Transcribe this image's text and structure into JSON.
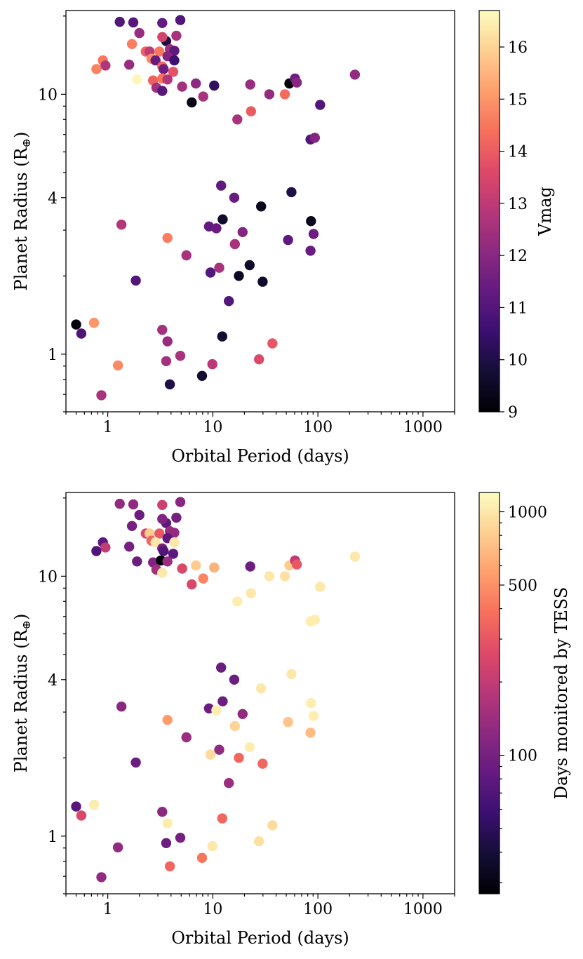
{
  "chart_data": [
    {
      "type": "scatter",
      "xscale": "log",
      "yscale": "log",
      "xlabel": "Orbital Period (days)",
      "ylabel_main": "Planet Radius (R",
      "ylabel_sub": "⊕",
      "ylabel_close": ")",
      "xlim": [
        0.4,
        2000
      ],
      "ylim": [
        0.6,
        21
      ],
      "x_tick_labels": [
        "1",
        "10",
        "100",
        "1000"
      ],
      "y_tick_labels": [
        "1",
        "4",
        "10"
      ],
      "colorbar": {
        "label": "Vmag",
        "scale": "linear",
        "range": [
          9,
          16.7
        ],
        "ticks": [
          "9",
          "10",
          "11",
          "12",
          "13",
          "14",
          "15",
          "16"
        ]
      },
      "points": [
        {
          "period": 1.3,
          "radius": 19.0,
          "c": 11.0
        },
        {
          "period": 1.75,
          "radius": 18.9,
          "c": 11.1
        },
        {
          "period": 3.3,
          "radius": 18.8,
          "c": 11.3
        },
        {
          "period": 4.9,
          "radius": 19.3,
          "c": 11.0
        },
        {
          "period": 2.0,
          "radius": 17.2,
          "c": 12.3
        },
        {
          "period": 3.6,
          "radius": 16.0,
          "c": 10.0
        },
        {
          "period": 4.5,
          "radius": 16.8,
          "c": 12.6
        },
        {
          "period": 3.3,
          "radius": 16.6,
          "c": 13.4
        },
        {
          "period": 1.7,
          "radius": 15.6,
          "c": 14.6
        },
        {
          "period": 2.3,
          "radius": 14.6,
          "c": 14.1
        },
        {
          "period": 2.5,
          "radius": 14.6,
          "c": 13.0
        },
        {
          "period": 3.1,
          "radius": 14.6,
          "c": 14.5
        },
        {
          "period": 3.9,
          "radius": 14.9,
          "c": 12.4
        },
        {
          "period": 4.3,
          "radius": 14.7,
          "c": 11.2
        },
        {
          "period": 3.7,
          "radius": 14.0,
          "c": 11.9
        },
        {
          "period": 2.6,
          "radius": 13.7,
          "c": 14.8
        },
        {
          "period": 2.85,
          "radius": 13.5,
          "c": 11.4
        },
        {
          "period": 4.3,
          "radius": 13.5,
          "c": 10.6
        },
        {
          "period": 0.9,
          "radius": 13.5,
          "c": 14.5
        },
        {
          "period": 3.3,
          "radius": 12.8,
          "c": 14.2
        },
        {
          "period": 1.6,
          "radius": 13.0,
          "c": 12.3
        },
        {
          "period": 0.95,
          "radius": 12.9,
          "c": 12.8
        },
        {
          "period": 0.78,
          "radius": 12.5,
          "c": 14.7
        },
        {
          "period": 3.4,
          "radius": 12.5,
          "c": 11.5
        },
        {
          "period": 4.2,
          "radius": 12.2,
          "c": 13.8
        },
        {
          "period": 1.9,
          "radius": 11.4,
          "c": 16.6
        },
        {
          "period": 2.7,
          "radius": 11.3,
          "c": 14.1
        },
        {
          "period": 3.3,
          "radius": 11.5,
          "c": 14.4
        },
        {
          "period": 3.7,
          "radius": 11.4,
          "c": 12.8
        },
        {
          "period": 2.9,
          "radius": 10.6,
          "c": 12.5
        },
        {
          "period": 3.3,
          "radius": 10.3,
          "c": 11.1
        },
        {
          "period": 5.1,
          "radius": 10.7,
          "c": 12.5
        },
        {
          "period": 6.9,
          "radius": 11.0,
          "c": 12.1
        },
        {
          "period": 10.3,
          "radius": 10.8,
          "c": 10.3
        },
        {
          "period": 22.7,
          "radius": 10.9,
          "c": 12.3
        },
        {
          "period": 53.5,
          "radius": 11.0,
          "c": 9.1
        },
        {
          "period": 60.5,
          "radius": 11.5,
          "c": 11.5
        },
        {
          "period": 63.0,
          "radius": 11.1,
          "c": 12.0
        },
        {
          "period": 225,
          "radius": 11.9,
          "c": 12.2
        },
        {
          "period": 6.3,
          "radius": 9.3,
          "c": 9.3
        },
        {
          "period": 8.1,
          "radius": 9.8,
          "c": 12.6
        },
        {
          "period": 34.5,
          "radius": 10.0,
          "c": 12.2
        },
        {
          "period": 48.5,
          "radius": 10.0,
          "c": 14.3
        },
        {
          "period": 23.1,
          "radius": 8.6,
          "c": 14.0
        },
        {
          "period": 17.1,
          "radius": 8.0,
          "c": 12.6
        },
        {
          "period": 105,
          "radius": 9.1,
          "c": 11.0
        },
        {
          "period": 85.0,
          "radius": 6.7,
          "c": 11.0
        },
        {
          "period": 93.5,
          "radius": 6.8,
          "c": 11.9
        },
        {
          "period": 12.0,
          "radius": 4.45,
          "c": 11.3
        },
        {
          "period": 56.0,
          "radius": 4.2,
          "c": 10.0
        },
        {
          "period": 16.0,
          "radius": 4.0,
          "c": 11.4
        },
        {
          "period": 28.8,
          "radius": 3.7,
          "c": 9.4
        },
        {
          "period": 12.4,
          "radius": 3.3,
          "c": 9.6
        },
        {
          "period": 86.0,
          "radius": 3.25,
          "c": 9.4
        },
        {
          "period": 9.2,
          "radius": 3.1,
          "c": 11.3
        },
        {
          "period": 10.8,
          "radius": 3.05,
          "c": 11.4
        },
        {
          "period": 19.2,
          "radius": 2.95,
          "c": 11.9
        },
        {
          "period": 91.0,
          "radius": 2.9,
          "c": 11.5
        },
        {
          "period": 1.35,
          "radius": 3.15,
          "c": 12.8
        },
        {
          "period": 3.7,
          "radius": 2.8,
          "c": 14.6
        },
        {
          "period": 52.0,
          "radius": 2.75,
          "c": 11.2
        },
        {
          "period": 16.2,
          "radius": 2.65,
          "c": 12.6
        },
        {
          "period": 85.0,
          "radius": 2.5,
          "c": 11.4
        },
        {
          "period": 5.6,
          "radius": 2.4,
          "c": 12.6
        },
        {
          "period": 22.4,
          "radius": 2.2,
          "c": 9.6
        },
        {
          "period": 11.5,
          "radius": 2.15,
          "c": 12.6
        },
        {
          "period": 9.5,
          "radius": 2.06,
          "c": 11.0
        },
        {
          "period": 17.7,
          "radius": 2.0,
          "c": 9.5
        },
        {
          "period": 1.85,
          "radius": 1.92,
          "c": 11.0
        },
        {
          "period": 29.8,
          "radius": 1.9,
          "c": 9.6
        },
        {
          "period": 14.2,
          "radius": 1.6,
          "c": 11.0
        },
        {
          "period": 0.5,
          "radius": 1.3,
          "c": 9.1
        },
        {
          "period": 0.74,
          "radius": 1.32,
          "c": 15.0
        },
        {
          "period": 0.56,
          "radius": 1.2,
          "c": 10.9
        },
        {
          "period": 3.3,
          "radius": 1.24,
          "c": 12.5
        },
        {
          "period": 12.3,
          "radius": 1.17,
          "c": 9.7
        },
        {
          "period": 3.7,
          "radius": 1.12,
          "c": 12.3
        },
        {
          "period": 36.9,
          "radius": 1.1,
          "c": 13.9
        },
        {
          "period": 4.9,
          "radius": 0.985,
          "c": 12.6
        },
        {
          "period": 3.6,
          "radius": 0.94,
          "c": 12.5
        },
        {
          "period": 27.5,
          "radius": 0.955,
          "c": 13.6
        },
        {
          "period": 1.25,
          "radius": 0.905,
          "c": 14.8
        },
        {
          "period": 9.9,
          "radius": 0.915,
          "c": 12.9
        },
        {
          "period": 7.9,
          "radius": 0.825,
          "c": 9.7
        },
        {
          "period": 3.9,
          "radius": 0.765,
          "c": 10.0
        },
        {
          "period": 0.87,
          "radius": 0.695,
          "c": 12.6
        }
      ]
    },
    {
      "type": "scatter",
      "xscale": "log",
      "yscale": "log",
      "xlabel": "Orbital Period (days)",
      "ylabel_main": "Planet Radius (R",
      "ylabel_sub": "⊕",
      "ylabel_close": ")",
      "xlim": [
        0.4,
        2000
      ],
      "ylim": [
        0.6,
        21
      ],
      "x_tick_labels": [
        "1",
        "10",
        "100",
        "1000"
      ],
      "y_tick_labels": [
        "1",
        "4",
        "10"
      ],
      "colorbar": {
        "label": "Days monitored by TESS",
        "scale": "log",
        "range": [
          27,
          1200
        ],
        "ticks": [
          "100",
          "500",
          "1000"
        ]
      },
      "points": [
        {
          "period": 1.3,
          "radius": 19.0,
          "c": 130
        },
        {
          "period": 1.75,
          "radius": 18.9,
          "c": 130
        },
        {
          "period": 3.3,
          "radius": 18.8,
          "c": 220
        },
        {
          "period": 4.9,
          "radius": 19.3,
          "c": 120
        },
        {
          "period": 2.0,
          "radius": 17.2,
          "c": 90
        },
        {
          "period": 3.6,
          "radius": 16.0,
          "c": 80
        },
        {
          "period": 4.5,
          "radius": 16.8,
          "c": 100
        },
        {
          "period": 3.3,
          "radius": 16.6,
          "c": 110
        },
        {
          "period": 1.7,
          "radius": 15.6,
          "c": 100
        },
        {
          "period": 2.3,
          "radius": 14.6,
          "c": 250
        },
        {
          "period": 2.5,
          "radius": 14.6,
          "c": 800
        },
        {
          "period": 3.1,
          "radius": 14.6,
          "c": 300
        },
        {
          "period": 3.9,
          "radius": 14.9,
          "c": 140
        },
        {
          "period": 4.3,
          "radius": 14.7,
          "c": 130
        },
        {
          "period": 3.7,
          "radius": 14.0,
          "c": 80
        },
        {
          "period": 2.6,
          "radius": 13.7,
          "c": 350
        },
        {
          "period": 2.85,
          "radius": 13.5,
          "c": 1000
        },
        {
          "period": 4.3,
          "radius": 13.5,
          "c": 1000
        },
        {
          "period": 0.9,
          "radius": 13.5,
          "c": 80
        },
        {
          "period": 3.3,
          "radius": 12.8,
          "c": 100
        },
        {
          "period": 1.6,
          "radius": 13.0,
          "c": 100
        },
        {
          "period": 0.95,
          "radius": 12.9,
          "c": 200
        },
        {
          "period": 0.78,
          "radius": 12.5,
          "c": 70
        },
        {
          "period": 3.4,
          "radius": 12.5,
          "c": 70
        },
        {
          "period": 4.2,
          "radius": 12.2,
          "c": 80
        },
        {
          "period": 1.9,
          "radius": 11.4,
          "c": 90
        },
        {
          "period": 2.7,
          "radius": 11.3,
          "c": 110
        },
        {
          "period": 3.2,
          "radius": 11.5,
          "c": 28
        },
        {
          "period": 3.7,
          "radius": 11.4,
          "c": 140
        },
        {
          "period": 2.9,
          "radius": 10.6,
          "c": 150
        },
        {
          "period": 3.3,
          "radius": 10.3,
          "c": 1000
        },
        {
          "period": 5.1,
          "radius": 10.7,
          "c": 250
        },
        {
          "period": 6.9,
          "radius": 11.0,
          "c": 800
        },
        {
          "period": 10.3,
          "radius": 10.8,
          "c": 650
        },
        {
          "period": 22.7,
          "radius": 10.9,
          "c": 90
        },
        {
          "period": 53.5,
          "radius": 11.0,
          "c": 800
        },
        {
          "period": 60.5,
          "radius": 11.5,
          "c": 200
        },
        {
          "period": 63.0,
          "radius": 11.1,
          "c": 300
        },
        {
          "period": 225,
          "radius": 11.9,
          "c": 1000
        },
        {
          "period": 6.3,
          "radius": 9.3,
          "c": 250
        },
        {
          "period": 8.1,
          "radius": 9.8,
          "c": 450
        },
        {
          "period": 34.5,
          "radius": 10.0,
          "c": 1000
        },
        {
          "period": 48.5,
          "radius": 10.0,
          "c": 950
        },
        {
          "period": 23.1,
          "radius": 8.6,
          "c": 1000
        },
        {
          "period": 17.1,
          "radius": 8.0,
          "c": 1050
        },
        {
          "period": 105,
          "radius": 9.1,
          "c": 1000
        },
        {
          "period": 85.0,
          "radius": 6.7,
          "c": 1050
        },
        {
          "period": 93.5,
          "radius": 6.8,
          "c": 1050
        },
        {
          "period": 12.0,
          "radius": 4.45,
          "c": 90
        },
        {
          "period": 56.0,
          "radius": 4.2,
          "c": 1000
        },
        {
          "period": 16.0,
          "radius": 4.0,
          "c": 90
        },
        {
          "period": 28.8,
          "radius": 3.7,
          "c": 1000
        },
        {
          "period": 12.4,
          "radius": 3.3,
          "c": 90
        },
        {
          "period": 86.0,
          "radius": 3.25,
          "c": 1050
        },
        {
          "period": 9.2,
          "radius": 3.1,
          "c": 90
        },
        {
          "period": 10.8,
          "radius": 3.05,
          "c": 1050
        },
        {
          "period": 19.2,
          "radius": 2.95,
          "c": 130
        },
        {
          "period": 91.0,
          "radius": 2.9,
          "c": 1050
        },
        {
          "period": 1.35,
          "radius": 3.15,
          "c": 120
        },
        {
          "period": 3.7,
          "radius": 2.8,
          "c": 550
        },
        {
          "period": 52.0,
          "radius": 2.75,
          "c": 750
        },
        {
          "period": 16.2,
          "radius": 2.65,
          "c": 850
        },
        {
          "period": 85.0,
          "radius": 2.5,
          "c": 700
        },
        {
          "period": 5.6,
          "radius": 2.4,
          "c": 140
        },
        {
          "period": 22.4,
          "radius": 2.2,
          "c": 1050
        },
        {
          "period": 11.5,
          "radius": 2.15,
          "c": 130
        },
        {
          "period": 9.5,
          "radius": 2.06,
          "c": 900
        },
        {
          "period": 17.7,
          "radius": 2.0,
          "c": 350
        },
        {
          "period": 1.85,
          "radius": 1.92,
          "c": 90
        },
        {
          "period": 29.8,
          "radius": 1.9,
          "c": 350
        },
        {
          "period": 14.2,
          "radius": 1.6,
          "c": 140
        },
        {
          "period": 0.5,
          "radius": 1.3,
          "c": 75
        },
        {
          "period": 0.74,
          "radius": 1.32,
          "c": 1050
        },
        {
          "period": 0.56,
          "radius": 1.2,
          "c": 250
        },
        {
          "period": 3.3,
          "radius": 1.24,
          "c": 120
        },
        {
          "period": 12.3,
          "radius": 1.17,
          "c": 350
        },
        {
          "period": 3.7,
          "radius": 1.12,
          "c": 1050
        },
        {
          "period": 36.9,
          "radius": 1.1,
          "c": 900
        },
        {
          "period": 4.9,
          "radius": 0.985,
          "c": 100
        },
        {
          "period": 3.6,
          "radius": 0.94,
          "c": 90
        },
        {
          "period": 27.5,
          "radius": 0.955,
          "c": 950
        },
        {
          "period": 1.25,
          "radius": 0.905,
          "c": 130
        },
        {
          "period": 9.9,
          "radius": 0.915,
          "c": 1000
        },
        {
          "period": 7.9,
          "radius": 0.825,
          "c": 400
        },
        {
          "period": 3.9,
          "radius": 0.765,
          "c": 350
        },
        {
          "period": 0.87,
          "radius": 0.695,
          "c": 130
        }
      ]
    }
  ]
}
